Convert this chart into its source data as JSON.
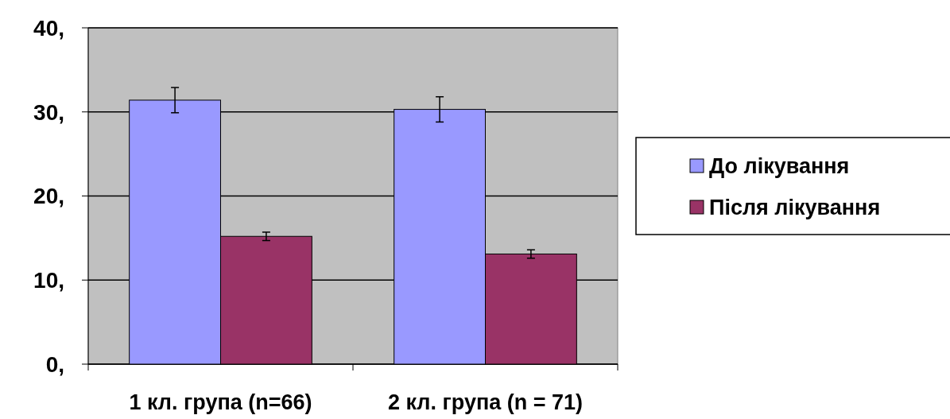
{
  "chart_data": {
    "type": "bar",
    "categories": [
      "1 кл. група (n=66)",
      "2 кл. група (n = 71)"
    ],
    "series": [
      {
        "name": "До лікування",
        "color": "#9999ff",
        "values": [
          31.4,
          30.3
        ],
        "errors": [
          1.5,
          1.5
        ]
      },
      {
        "name": "Після лікування",
        "color": "#993366",
        "values": [
          15.2,
          13.1
        ],
        "errors": [
          0.5,
          0.5
        ]
      }
    ],
    "ylim": [
      0,
      40
    ],
    "yticks": [
      {
        "value": 0,
        "label": "0,"
      },
      {
        "value": 10,
        "label": "10,"
      },
      {
        "value": 20,
        "label": "20,"
      },
      {
        "value": 30,
        "label": "30,"
      },
      {
        "value": 40,
        "label": "40,"
      }
    ],
    "grid": "y",
    "legend": "right"
  }
}
